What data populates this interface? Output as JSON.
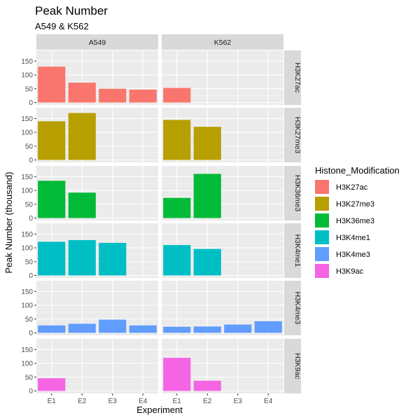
{
  "chart_data": {
    "type": "bar",
    "title": "Peak Number",
    "subtitle": "A549 & K562",
    "xlabel": "Experiment",
    "ylabel": "Peak Number (thousand)",
    "categories": [
      "E1",
      "E2",
      "E3",
      "E4"
    ],
    "columns": [
      "A549",
      "K562"
    ],
    "rows": [
      "H3K27ac",
      "H3K27me3",
      "H3K36me3",
      "H3K4me1",
      "H3K4me3",
      "H3K9ac"
    ],
    "yticks": [
      0,
      50,
      100,
      150
    ],
    "ylim": [
      0,
      180
    ],
    "legend": {
      "title": "Histone_Modification",
      "position": "right",
      "entries": [
        {
          "name": "H3K27ac",
          "color": "#F8766D"
        },
        {
          "name": "H3K27me3",
          "color": "#B79F00"
        },
        {
          "name": "H3K36me3",
          "color": "#00BA38"
        },
        {
          "name": "H3K4me1",
          "color": "#00BFC4"
        },
        {
          "name": "H3K4me3",
          "color": "#619CFF"
        },
        {
          "name": "H3K9ac",
          "color": "#F564E3"
        }
      ]
    },
    "panels": [
      {
        "row": "H3K27ac",
        "column": "A549",
        "values": [
          130,
          72,
          50,
          47
        ]
      },
      {
        "row": "H3K27ac",
        "column": "K562",
        "values": [
          53,
          null,
          null,
          null
        ]
      },
      {
        "row": "H3K27me3",
        "column": "A549",
        "values": [
          140,
          170,
          null,
          null
        ]
      },
      {
        "row": "H3K27me3",
        "column": "K562",
        "values": [
          145,
          120,
          null,
          null
        ]
      },
      {
        "row": "H3K36me3",
        "column": "A549",
        "values": [
          135,
          92,
          null,
          null
        ]
      },
      {
        "row": "H3K36me3",
        "column": "K562",
        "values": [
          73,
          160,
          null,
          null
        ]
      },
      {
        "row": "H3K4me1",
        "column": "A549",
        "values": [
          122,
          128,
          118,
          null
        ]
      },
      {
        "row": "H3K4me1",
        "column": "K562",
        "values": [
          110,
          96,
          null,
          null
        ]
      },
      {
        "row": "H3K4me3",
        "column": "A549",
        "values": [
          27,
          33,
          48,
          27
        ]
      },
      {
        "row": "H3K4me3",
        "column": "K562",
        "values": [
          22,
          23,
          30,
          42
        ]
      },
      {
        "row": "H3K9ac",
        "column": "A549",
        "values": [
          46,
          null,
          null,
          null
        ]
      },
      {
        "row": "H3K9ac",
        "column": "K562",
        "values": [
          120,
          37,
          null,
          null
        ]
      }
    ],
    "grid": true,
    "panel_background": "#EBEBEB",
    "strip_background": "#D9D9D9"
  }
}
